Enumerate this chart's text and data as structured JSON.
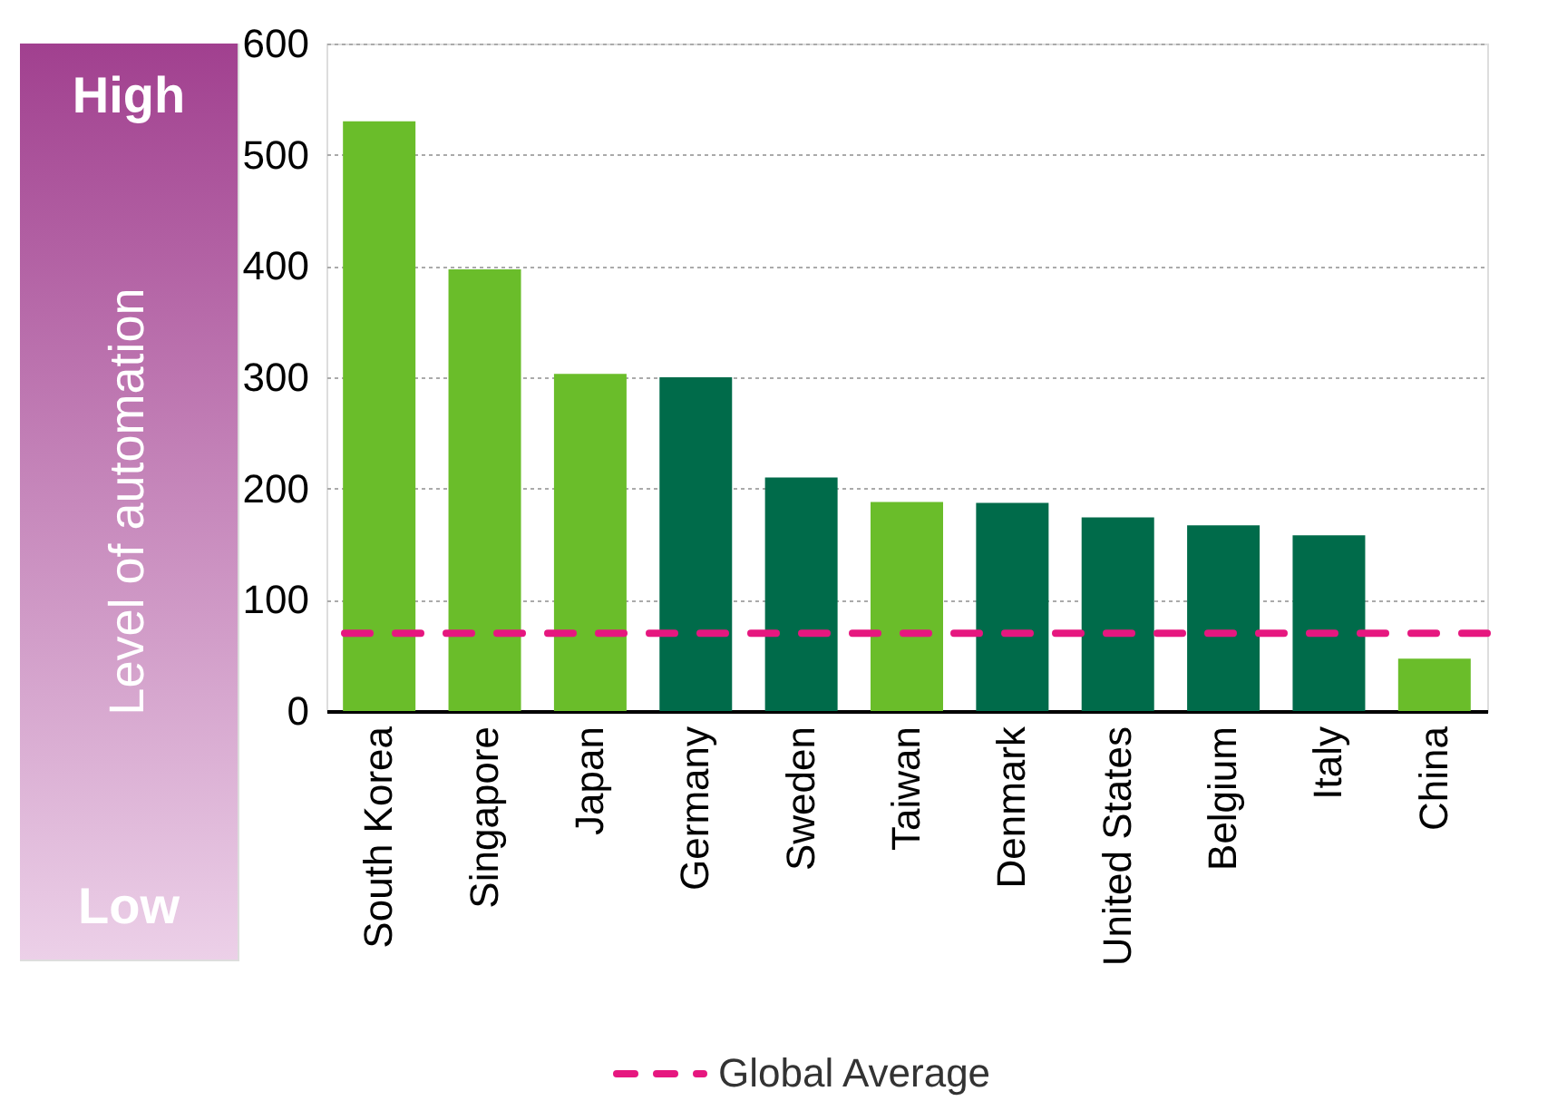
{
  "chart_data": {
    "type": "bar",
    "ylabel": "Level of automation",
    "annotations": [
      "High",
      "Low"
    ],
    "categories": [
      "South Korea",
      "Singapore",
      "Japan",
      "Germany",
      "Sweden",
      "Taiwan",
      "Denmark",
      "United States",
      "Belgium",
      "Italy",
      "China"
    ],
    "values": [
      530,
      397,
      303,
      300,
      210,
      188,
      187,
      174,
      167,
      158,
      47
    ],
    "colors": [
      "#6abd2a",
      "#6abd2a",
      "#6abd2a",
      "#006b4a",
      "#006b4a",
      "#6abd2a",
      "#006b4a",
      "#006b4a",
      "#006b4a",
      "#006b4a",
      "#6abd2a"
    ],
    "ylim": [
      0,
      600
    ],
    "yticks": [
      0,
      100,
      200,
      300,
      400,
      500,
      600
    ],
    "grid": "y",
    "legend": "bottom",
    "ref_lines": [
      {
        "axis": "y",
        "value": 70,
        "label": "Global Average",
        "color": "#e6177f",
        "line_style": "dashed"
      }
    ]
  }
}
